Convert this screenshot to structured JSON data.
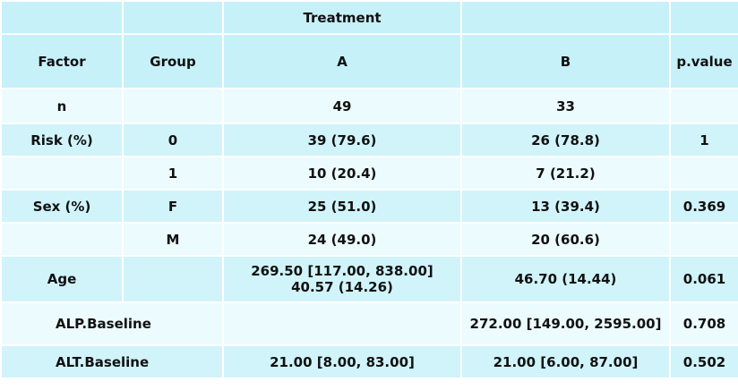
{
  "header": {
    "treatment": "Treatment",
    "factor": "Factor",
    "group": "Group",
    "col_a": "A",
    "col_b": "B",
    "pvalue": "p.value"
  },
  "rows": [
    {
      "factor": "n",
      "group": "",
      "a": "49",
      "b": "33",
      "p": ""
    },
    {
      "factor": "Risk (%)",
      "group": "0",
      "a": "39 (79.6)",
      "b": "26 (78.8)",
      "p": "1"
    },
    {
      "factor": "",
      "group": "1",
      "a": "10 (20.4)",
      "b": "7 (21.2)",
      "p": ""
    },
    {
      "factor": "Sex (%)",
      "group": "F",
      "a": "25 (51.0)",
      "b": "13 (39.4)",
      "p": "0.369"
    },
    {
      "factor": "",
      "group": "M",
      "a": "24 (49.0)",
      "b": "20 (60.6)",
      "p": ""
    },
    {
      "factor": "Age",
      "group": "",
      "a_line1": "269.50 [117.00, 838.00]",
      "a_line2": "40.57 (14.26)",
      "b": "46.70 (14.44)",
      "p": "0.061"
    },
    {
      "factor": "ALP.Baseline",
      "a": "",
      "b": "272.00 [149.00, 2595.00]",
      "p": "0.708"
    },
    {
      "factor": "ALT.Baseline",
      "a": "21.00 [8.00, 83.00]",
      "b": "21.00 [6.00, 87.00]",
      "p": "0.502"
    }
  ]
}
